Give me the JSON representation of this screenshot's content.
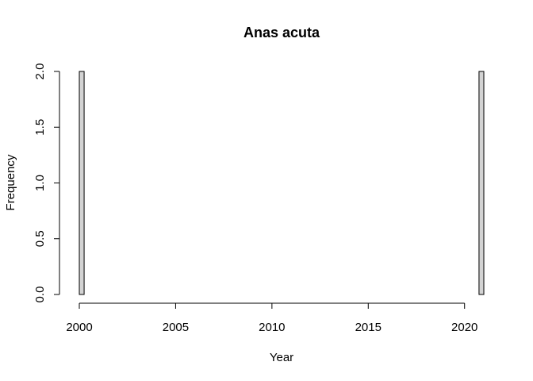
{
  "chart_data": {
    "type": "bar",
    "title": "Anas acuta",
    "xlabel": "Year",
    "ylabel": "Frequency",
    "x_ticks": [
      2000,
      2005,
      2010,
      2015,
      2020
    ],
    "y_ticks": [
      "0.0",
      "0.5",
      "1.0",
      "1.5",
      "2.0"
    ],
    "ylim": [
      0,
      2
    ],
    "bin_width": 0.25,
    "bins_start": 2000,
    "bins_end": 2021,
    "bars": [
      {
        "x_start": 2000,
        "x_end": 2000.25,
        "value": 2
      },
      {
        "x_start": 2020.75,
        "x_end": 2021,
        "value": 2
      }
    ],
    "colors": {
      "bar_fill": "#d3d3d3",
      "bar_stroke": "#000000"
    }
  }
}
